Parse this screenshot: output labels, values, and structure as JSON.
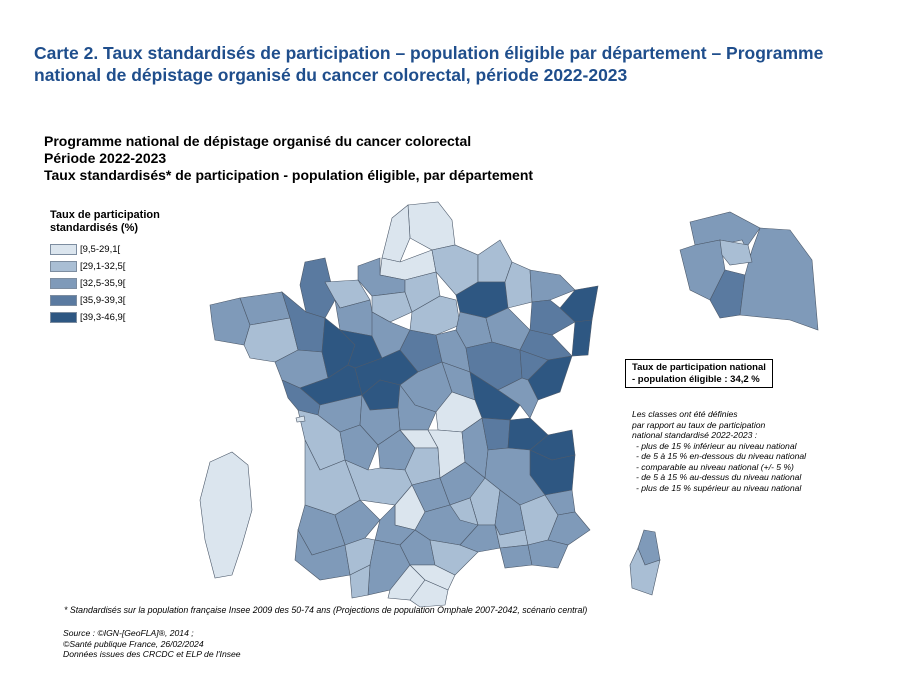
{
  "header": {
    "title_line1": "Carte 2. Taux standardisés de participation – population éligible par département – Programme",
    "title_line2": "national de dépistage organisé du cancer colorectal, période 2022-2023"
  },
  "map_titles": {
    "line1": "Programme national de dépistage organisé du cancer colorectal",
    "line2": "Période 2022-2023",
    "line3": "Taux standardisés* de participation - population éligible, par département"
  },
  "legend": {
    "title_line1": "Taux de participation",
    "title_line2": "standardisés (%)",
    "classes": [
      {
        "label": "[9,5-29,1[",
        "color": "#dbe5ee"
      },
      {
        "label": "[29,1-32,5[",
        "color": "#a9bed4"
      },
      {
        "label": "[32,5-35,9[",
        "color": "#7f9ab9"
      },
      {
        "label": "[35,9-39,3[",
        "color": "#5a7aa0"
      },
      {
        "label": "[39,3-46,9[",
        "color": "#2e5782"
      }
    ]
  },
  "national_rate": {
    "line1": "Taux de participation national",
    "line2": "- population éligible : 34,2 %"
  },
  "class_definition": {
    "intro1": "Les classes ont été définies",
    "intro2": "par rapport au taux de participation",
    "intro3": "national standardisé 2022-2023 :",
    "items": [
      "- plus de 15 % inférieur au niveau national",
      "- de 5 à 15 % en-dessous du niveau national",
      "- comparable au niveau national (+/- 5 %)",
      "- de 5 à 15 % au-dessus du niveau national",
      "- plus de 15 % supérieur au niveau national"
    ]
  },
  "footnote": "* Standardisés sur la population française Insee 2009 des 50-74 ans (Projections de population Omphale 2007-2042, scénario central)",
  "sources": {
    "line1": "Source : ©IGN-[GeoFLA]®, 2014 ;",
    "line2": "©Santé publique France, 26/02/2024",
    "line3": "Données issues des CRCDC et ELP de l'Insee"
  }
}
